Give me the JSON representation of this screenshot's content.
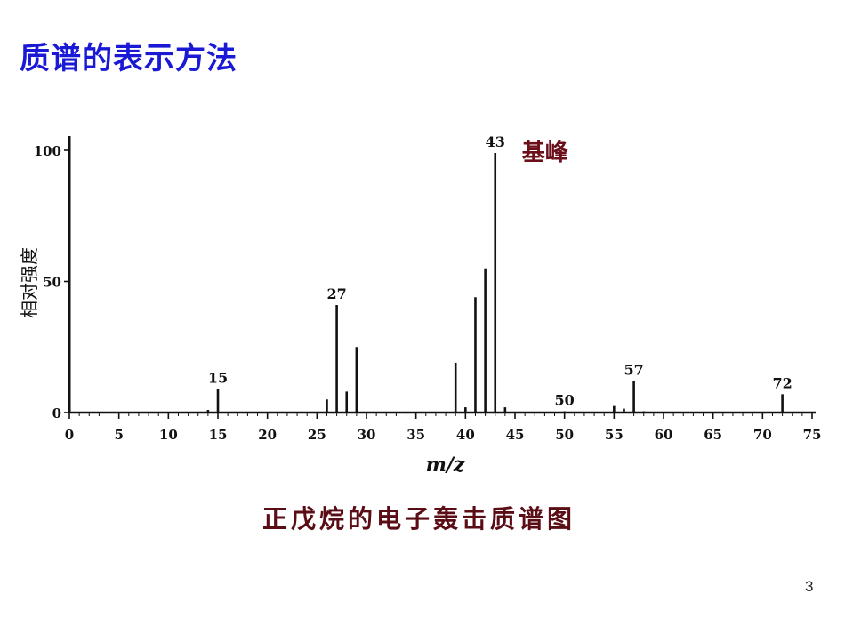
{
  "slide": {
    "title": "质谱的表示方法",
    "caption": "正戊烷的电子轰击质谱图",
    "page_number": "3"
  },
  "chart_data": {
    "type": "bar",
    "title": "",
    "xlabel": "m/z",
    "ylabel": "相对强度",
    "xlim": [
      0,
      75
    ],
    "ylim": [
      0,
      100
    ],
    "x_ticks": [
      0,
      5,
      10,
      15,
      20,
      25,
      30,
      35,
      40,
      45,
      50,
      55,
      60,
      65,
      70,
      75
    ],
    "y_ticks": [
      0,
      50,
      100
    ],
    "series": [
      {
        "x": [
          14,
          15,
          26,
          27,
          28,
          29,
          39,
          40,
          41,
          42,
          43,
          44,
          50,
          55,
          56,
          57,
          58,
          72
        ],
        "values": [
          1,
          9,
          5,
          41,
          8,
          25,
          19,
          2,
          44,
          55,
          99,
          2,
          0.5,
          2.5,
          1.5,
          12,
          0.5,
          7
        ]
      }
    ],
    "peak_labels": [
      {
        "x": 15,
        "text": "15"
      },
      {
        "x": 27,
        "text": "27"
      },
      {
        "x": 43,
        "text": "43"
      },
      {
        "x": 50,
        "text": "50"
      },
      {
        "x": 57,
        "text": "57"
      },
      {
        "x": 72,
        "text": "72"
      }
    ],
    "annotations": [
      {
        "text": "基峰",
        "target_x": 43
      }
    ],
    "grid": false,
    "legend": "none"
  }
}
